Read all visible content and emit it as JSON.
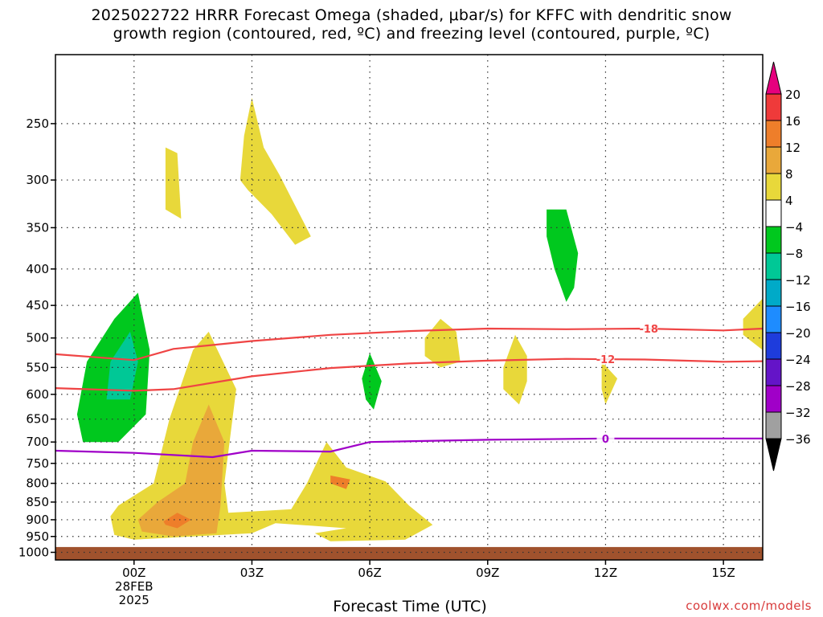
{
  "title": {
    "line1": "2025022722 HRRR Forecast Omega (shaded, μbar/s) for KFFC with dendritic snow",
    "line2": "growth region (contoured, red, ºC) and freezing level (contoured, purple, ºC)"
  },
  "credit": "coolwx.com/models",
  "chart_data": {
    "type": "heatmap",
    "title": "2025022722 HRRR Forecast Omega (shaded, μbar/s) for KFFC with dendritic snow growth region (contoured, red, ºC) and freezing level (contoured, purple, ºC)",
    "xlabel": "Forecast Time (UTC)",
    "x_range_hours_from_00z": [
      -2,
      16
    ],
    "x_ticks": [
      {
        "hour": 0,
        "label": "00Z",
        "sub1": "28FEB",
        "sub2": "2025"
      },
      {
        "hour": 3,
        "label": "03Z"
      },
      {
        "hour": 6,
        "label": "06Z"
      },
      {
        "hour": 9,
        "label": "09Z"
      },
      {
        "hour": 12,
        "label": "12Z"
      },
      {
        "hour": 15,
        "label": "15Z"
      }
    ],
    "y_scale": "log",
    "y_range_hPa": [
      1025,
      200
    ],
    "y_ticks": [
      250,
      300,
      350,
      400,
      450,
      500,
      550,
      600,
      650,
      700,
      750,
      800,
      850,
      900,
      950,
      1000
    ],
    "grid": "dotted",
    "surface_pressure_hPa": 983,
    "surface_color": "#a0522d",
    "colorbar": {
      "levels": [
        20,
        16,
        12,
        8,
        4,
        -4,
        -8,
        -12,
        -16,
        -20,
        -24,
        -28,
        -32,
        -36
      ],
      "bins": [
        {
          "range": "> 20",
          "color": "#e6007e"
        },
        {
          "range": "16 to 20",
          "color": "#ef3a3a"
        },
        {
          "range": "12 to 16",
          "color": "#ee7e2a"
        },
        {
          "range": "8 to 12",
          "color": "#e9a83a"
        },
        {
          "range": "4 to 8",
          "color": "#e8d83a"
        },
        {
          "range": "-4 to 4",
          "color": "#ffffff"
        },
        {
          "range": "-8 to -4",
          "color": "#00c81e"
        },
        {
          "range": "-12 to -8",
          "color": "#00c896"
        },
        {
          "range": "-16 to -12",
          "color": "#00aac8"
        },
        {
          "range": "-20 to -16",
          "color": "#1e8cff"
        },
        {
          "range": "-24 to -20",
          "color": "#1e3cdc"
        },
        {
          "range": "-28 to -24",
          "color": "#6414c8"
        },
        {
          "range": "-32 to -28",
          "color": "#a000c8"
        },
        {
          "range": "-36 to -32",
          "color": "#a0a0a0"
        },
        {
          "range": "< -36",
          "color": "#000000"
        }
      ]
    },
    "contours": [
      {
        "label": "-18",
        "color": "#ef4444",
        "label_at_hour": 13.1,
        "points": [
          [
            -2,
            527
          ],
          [
            0,
            537
          ],
          [
            1,
            518
          ],
          [
            3,
            505
          ],
          [
            5,
            495
          ],
          [
            7,
            489
          ],
          [
            9,
            485
          ],
          [
            11,
            486
          ],
          [
            13,
            485
          ],
          [
            15,
            488
          ],
          [
            16,
            485
          ]
        ]
      },
      {
        "label": "-12",
        "color": "#ef4444",
        "label_at_hour": 12.0,
        "points": [
          [
            -2,
            588
          ],
          [
            0,
            593
          ],
          [
            1,
            590
          ],
          [
            3,
            566
          ],
          [
            5,
            551
          ],
          [
            7,
            543
          ],
          [
            9,
            538
          ],
          [
            11,
            535
          ],
          [
            13,
            536
          ],
          [
            15,
            540
          ],
          [
            16,
            539
          ]
        ]
      },
      {
        "label": "0",
        "color": "#a000c8",
        "label_at_hour": 12.0,
        "points": [
          [
            -2,
            720
          ],
          [
            0,
            725
          ],
          [
            2,
            735
          ],
          [
            3,
            720
          ],
          [
            5,
            722
          ],
          [
            6,
            700
          ],
          [
            9,
            695
          ],
          [
            12,
            692
          ],
          [
            15,
            692
          ],
          [
            16,
            692
          ]
        ]
      }
    ],
    "omega_regions": [
      {
        "value_bin": "-8 to -4",
        "points": [
          [
            -1.3,
            700
          ],
          [
            -1.45,
            640
          ],
          [
            -1.2,
            540
          ],
          [
            -0.5,
            470
          ],
          [
            0.1,
            432
          ],
          [
            0.4,
            520
          ],
          [
            0.3,
            640
          ],
          [
            -0.4,
            700
          ]
        ]
      },
      {
        "value_bin": "-12 to -8",
        "points": [
          [
            -0.7,
            610
          ],
          [
            -0.6,
            540
          ],
          [
            -0.1,
            490
          ],
          [
            0.1,
            540
          ],
          [
            -0.1,
            610
          ]
        ]
      },
      {
        "value_bin": "4 to 8",
        "points": [
          [
            0.8,
            330
          ],
          [
            0.8,
            270
          ],
          [
            1.1,
            275
          ],
          [
            1.2,
            340
          ]
        ]
      },
      {
        "value_bin": "4 to 8",
        "points": [
          [
            2.7,
            300
          ],
          [
            2.8,
            260
          ],
          [
            3.0,
            230
          ],
          [
            3.3,
            270
          ],
          [
            3.7,
            295
          ],
          [
            4.5,
            360
          ],
          [
            4.1,
            370
          ],
          [
            3.5,
            335
          ],
          [
            2.9,
            310
          ]
        ]
      },
      {
        "value_bin": "4 to 8",
        "points": [
          [
            -0.6,
            890
          ],
          [
            -0.4,
            860
          ],
          [
            0.5,
            800
          ],
          [
            0.9,
            650
          ],
          [
            1.5,
            520
          ],
          [
            1.9,
            490
          ],
          [
            2.6,
            590
          ],
          [
            2.3,
            800
          ],
          [
            2.4,
            880
          ],
          [
            4.0,
            870
          ],
          [
            4.4,
            800
          ],
          [
            4.9,
            700
          ],
          [
            5.4,
            760
          ],
          [
            6.4,
            795
          ],
          [
            7.0,
            860
          ],
          [
            7.6,
            915
          ],
          [
            6.9,
            960
          ],
          [
            5.0,
            965
          ],
          [
            4.6,
            940
          ],
          [
            5.4,
            925
          ],
          [
            3.6,
            910
          ],
          [
            3.0,
            940
          ],
          [
            0.0,
            960
          ],
          [
            -0.5,
            945
          ]
        ]
      },
      {
        "value_bin": "8 to 12",
        "points": [
          [
            0.1,
            900
          ],
          [
            0.6,
            850
          ],
          [
            1.3,
            800
          ],
          [
            1.5,
            700
          ],
          [
            1.9,
            620
          ],
          [
            2.3,
            700
          ],
          [
            2.2,
            860
          ],
          [
            2.1,
            940
          ],
          [
            1.0,
            950
          ],
          [
            0.2,
            935
          ]
        ]
      },
      {
        "value_bin": "12 to 16",
        "points": [
          [
            0.75,
            905
          ],
          [
            1.1,
            880
          ],
          [
            1.45,
            900
          ],
          [
            1.1,
            925
          ],
          [
            0.8,
            915
          ]
        ]
      },
      {
        "value_bin": "12 to 16",
        "points": [
          [
            5.0,
            780
          ],
          [
            5.5,
            790
          ],
          [
            5.4,
            815
          ],
          [
            5.0,
            800
          ]
        ]
      },
      {
        "value_bin": "4 to 8",
        "points": [
          [
            7.4,
            500
          ],
          [
            7.8,
            470
          ],
          [
            8.2,
            490
          ],
          [
            8.3,
            540
          ],
          [
            7.8,
            550
          ],
          [
            7.4,
            530
          ]
        ]
      },
      {
        "value_bin": "4 to 8",
        "points": [
          [
            9.4,
            550
          ],
          [
            9.7,
            495
          ],
          [
            10.0,
            530
          ],
          [
            10.0,
            575
          ],
          [
            9.8,
            620
          ],
          [
            9.4,
            590
          ]
        ]
      },
      {
        "value_bin": "4 to 8",
        "points": [
          [
            11.9,
            540
          ],
          [
            12.3,
            570
          ],
          [
            12.0,
            620
          ],
          [
            11.9,
            590
          ]
        ]
      },
      {
        "value_bin": "4 to 8",
        "points": [
          [
            15.5,
            470
          ],
          [
            16,
            440
          ],
          [
            16,
            520
          ],
          [
            15.5,
            495
          ]
        ]
      },
      {
        "value_bin": "-8 to -4",
        "points": [
          [
            5.8,
            570
          ],
          [
            6.0,
            525
          ],
          [
            6.3,
            575
          ],
          [
            6.1,
            630
          ],
          [
            5.9,
            610
          ]
        ]
      },
      {
        "value_bin": "-8 to -4",
        "points": [
          [
            10.5,
            330
          ],
          [
            11.0,
            330
          ],
          [
            11.3,
            380
          ],
          [
            11.2,
            425
          ],
          [
            11.0,
            445
          ],
          [
            10.7,
            400
          ],
          [
            10.5,
            360
          ]
        ]
      }
    ]
  }
}
